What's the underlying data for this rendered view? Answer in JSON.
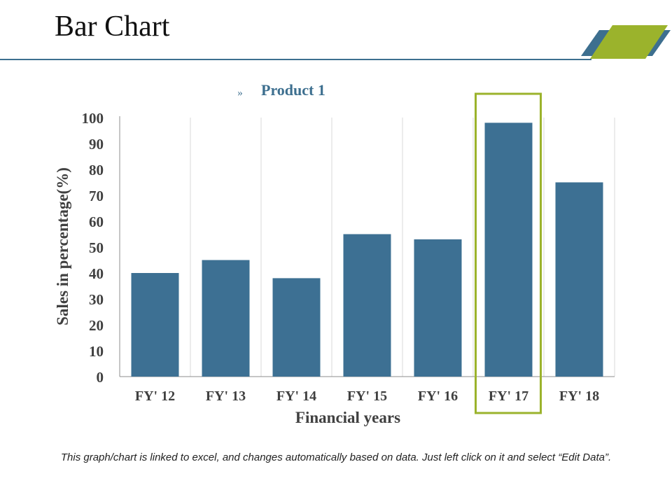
{
  "slide": {
    "title": "Bar Chart",
    "footnote": "This graph/chart is linked to excel, and changes automatically based on data. Just left click on it and select “Edit Data”."
  },
  "colors": {
    "accent_blue": "#3d6f8f",
    "accent_green": "#9bb32c",
    "bar": "#3d7093",
    "grid": "#d9d9d9",
    "axis_text": "#404040",
    "legend_text": "#3d6f8f"
  },
  "chart_data": {
    "type": "bar",
    "title": "",
    "legend_marker": "»",
    "legend_position": "top",
    "categories": [
      "FY' 12",
      "FY' 13",
      "FY' 14",
      "FY' 15",
      "FY' 16",
      "FY' 17",
      "FY' 18"
    ],
    "series": [
      {
        "name": "Product 1",
        "values": [
          40,
          45,
          38,
          55,
          53,
          98,
          75
        ]
      }
    ],
    "xlabel": "Financial years",
    "ylabel": "Sales in percentage(%)",
    "ylim": [
      0,
      100
    ],
    "yticks": [
      0,
      10,
      20,
      30,
      40,
      50,
      60,
      70,
      80,
      90,
      100
    ],
    "grid": "vertical",
    "highlight_category": "FY' 17"
  }
}
